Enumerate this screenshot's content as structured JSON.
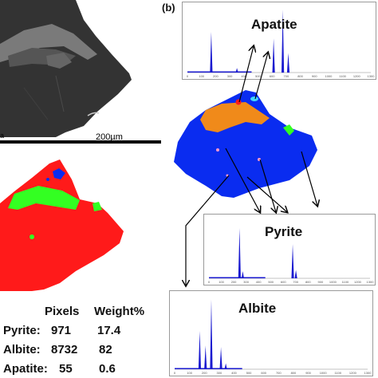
{
  "panel_b_label": "(b)",
  "scale_bar": {
    "left_text": "a",
    "right_text": "200µm"
  },
  "spectra": {
    "apatite": {
      "title": "Apatite",
      "ticks": [
        "0",
        "100",
        "200",
        "300",
        "400",
        "500",
        "600",
        "700",
        "800",
        "900",
        "1000",
        "1100",
        "1200",
        "1300"
      ]
    },
    "pyrite": {
      "title": "Pyrite",
      "ticks": [
        "0",
        "100",
        "200",
        "300",
        "400",
        "500",
        "600",
        "700",
        "800",
        "900",
        "1000",
        "1100",
        "1200",
        "1300"
      ]
    },
    "albite": {
      "title": "Albite",
      "ticks": [
        "0",
        "100",
        "200",
        "300",
        "400",
        "500",
        "600",
        "700",
        "800",
        "900",
        "1000",
        "1100",
        "1200",
        "1300"
      ]
    }
  },
  "table": {
    "headers": [
      "Pixels",
      "Weight%"
    ],
    "rows": [
      {
        "mineral": "Pyrite:",
        "pixels": "971",
        "weight": "17.4"
      },
      {
        "mineral": "Albite:",
        "pixels": "8732",
        "weight": "82"
      },
      {
        "mineral": "Apatite:",
        "pixels": "55",
        "weight": "0.6"
      }
    ]
  },
  "colors": {
    "sem_gray": "#3a3a3a",
    "phase_red": "#ff1a1a",
    "phase_green": "#33ff22",
    "phase_blue": "#0a2cf0",
    "phase_orange": "#f08a1a",
    "spectrum_blue": "#1a1ad0"
  }
}
